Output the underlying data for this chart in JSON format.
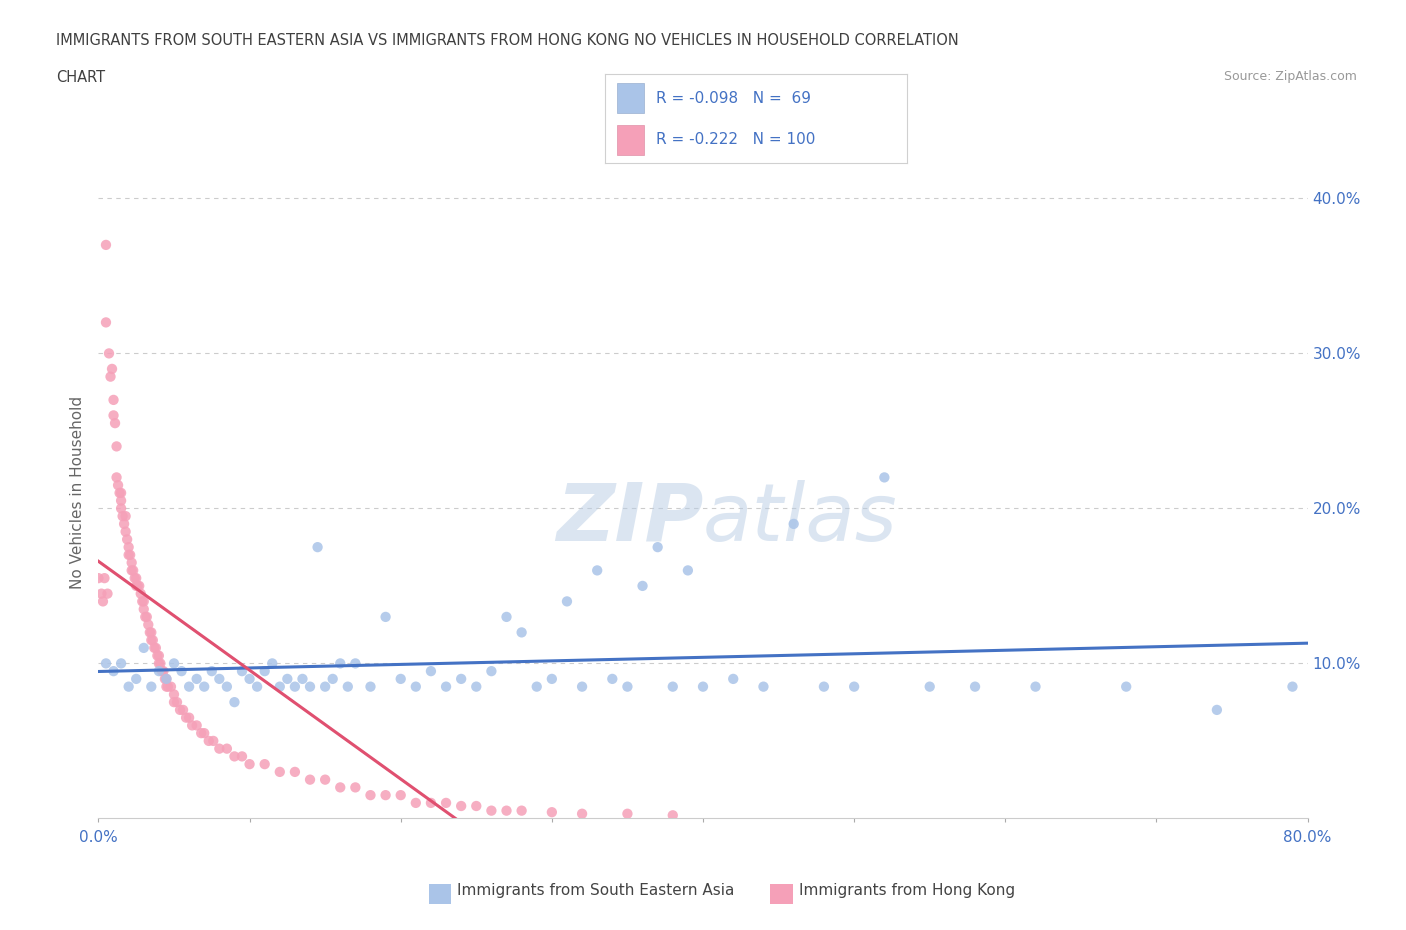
{
  "title_line1": "IMMIGRANTS FROM SOUTH EASTERN ASIA VS IMMIGRANTS FROM HONG KONG NO VEHICLES IN HOUSEHOLD CORRELATION",
  "title_line2": "CHART",
  "source_text": "Source: ZipAtlas.com",
  "ylabel": "No Vehicles in Household",
  "xlim": [
    0.0,
    0.8
  ],
  "ylim": [
    0.0,
    0.42
  ],
  "xticks": [
    0.0,
    0.1,
    0.2,
    0.3,
    0.4,
    0.5,
    0.6,
    0.7,
    0.8
  ],
  "xticklabels": [
    "0.0%",
    "",
    "",
    "",
    "",
    "",
    "",
    "",
    "80.0%"
  ],
  "yticks": [
    0.0,
    0.1,
    0.2,
    0.3,
    0.4
  ],
  "yticklabels": [
    "",
    "10.0%",
    "20.0%",
    "30.0%",
    "40.0%"
  ],
  "watermark": "ZIPatlas",
  "color_sea": "#aac4e8",
  "color_hk": "#f5a0b8",
  "color_sea_line": "#4472C4",
  "color_hk_line": "#e05070",
  "color_hk_line_dash": "#e0b0c0",
  "title_color": "#404040",
  "axis_color": "#4472C4",
  "background_color": "#ffffff",
  "sea_scatter": {
    "x": [
      0.005,
      0.01,
      0.015,
      0.02,
      0.025,
      0.03,
      0.035,
      0.04,
      0.045,
      0.05,
      0.055,
      0.06,
      0.065,
      0.07,
      0.075,
      0.08,
      0.085,
      0.09,
      0.095,
      0.1,
      0.105,
      0.11,
      0.115,
      0.12,
      0.125,
      0.13,
      0.135,
      0.14,
      0.145,
      0.15,
      0.155,
      0.16,
      0.165,
      0.17,
      0.18,
      0.19,
      0.2,
      0.21,
      0.22,
      0.23,
      0.24,
      0.25,
      0.26,
      0.27,
      0.28,
      0.29,
      0.3,
      0.31,
      0.32,
      0.33,
      0.34,
      0.35,
      0.36,
      0.37,
      0.38,
      0.39,
      0.4,
      0.42,
      0.44,
      0.46,
      0.48,
      0.5,
      0.52,
      0.55,
      0.58,
      0.62,
      0.68,
      0.74,
      0.79
    ],
    "y": [
      0.1,
      0.095,
      0.1,
      0.085,
      0.09,
      0.11,
      0.085,
      0.095,
      0.09,
      0.1,
      0.095,
      0.085,
      0.09,
      0.085,
      0.095,
      0.09,
      0.085,
      0.075,
      0.095,
      0.09,
      0.085,
      0.095,
      0.1,
      0.085,
      0.09,
      0.085,
      0.09,
      0.085,
      0.175,
      0.085,
      0.09,
      0.1,
      0.085,
      0.1,
      0.085,
      0.13,
      0.09,
      0.085,
      0.095,
      0.085,
      0.09,
      0.085,
      0.095,
      0.13,
      0.12,
      0.085,
      0.09,
      0.14,
      0.085,
      0.16,
      0.09,
      0.085,
      0.15,
      0.175,
      0.085,
      0.16,
      0.085,
      0.09,
      0.085,
      0.19,
      0.085,
      0.085,
      0.22,
      0.085,
      0.085,
      0.085,
      0.085,
      0.07,
      0.085
    ]
  },
  "hk_scatter": {
    "x": [
      0.0,
      0.002,
      0.003,
      0.004,
      0.005,
      0.005,
      0.006,
      0.007,
      0.008,
      0.009,
      0.01,
      0.01,
      0.011,
      0.012,
      0.012,
      0.013,
      0.014,
      0.015,
      0.015,
      0.015,
      0.016,
      0.017,
      0.018,
      0.018,
      0.019,
      0.02,
      0.02,
      0.021,
      0.022,
      0.022,
      0.023,
      0.024,
      0.025,
      0.025,
      0.026,
      0.027,
      0.028,
      0.029,
      0.03,
      0.03,
      0.031,
      0.032,
      0.033,
      0.034,
      0.035,
      0.035,
      0.036,
      0.037,
      0.038,
      0.039,
      0.04,
      0.04,
      0.041,
      0.042,
      0.043,
      0.044,
      0.045,
      0.045,
      0.046,
      0.048,
      0.05,
      0.05,
      0.052,
      0.054,
      0.056,
      0.058,
      0.06,
      0.062,
      0.065,
      0.068,
      0.07,
      0.073,
      0.076,
      0.08,
      0.085,
      0.09,
      0.095,
      0.1,
      0.11,
      0.12,
      0.13,
      0.14,
      0.15,
      0.16,
      0.17,
      0.18,
      0.19,
      0.2,
      0.21,
      0.22,
      0.23,
      0.24,
      0.25,
      0.26,
      0.27,
      0.28,
      0.3,
      0.32,
      0.35,
      0.38
    ],
    "y": [
      0.155,
      0.145,
      0.14,
      0.155,
      0.37,
      0.32,
      0.145,
      0.3,
      0.285,
      0.29,
      0.27,
      0.26,
      0.255,
      0.24,
      0.22,
      0.215,
      0.21,
      0.21,
      0.205,
      0.2,
      0.195,
      0.19,
      0.195,
      0.185,
      0.18,
      0.175,
      0.17,
      0.17,
      0.165,
      0.16,
      0.16,
      0.155,
      0.155,
      0.15,
      0.15,
      0.15,
      0.145,
      0.14,
      0.14,
      0.135,
      0.13,
      0.13,
      0.125,
      0.12,
      0.12,
      0.115,
      0.115,
      0.11,
      0.11,
      0.105,
      0.105,
      0.1,
      0.1,
      0.095,
      0.095,
      0.09,
      0.09,
      0.085,
      0.085,
      0.085,
      0.08,
      0.075,
      0.075,
      0.07,
      0.07,
      0.065,
      0.065,
      0.06,
      0.06,
      0.055,
      0.055,
      0.05,
      0.05,
      0.045,
      0.045,
      0.04,
      0.04,
      0.035,
      0.035,
      0.03,
      0.03,
      0.025,
      0.025,
      0.02,
      0.02,
      0.015,
      0.015,
      0.015,
      0.01,
      0.01,
      0.01,
      0.008,
      0.008,
      0.005,
      0.005,
      0.005,
      0.004,
      0.003,
      0.003,
      0.002
    ]
  }
}
